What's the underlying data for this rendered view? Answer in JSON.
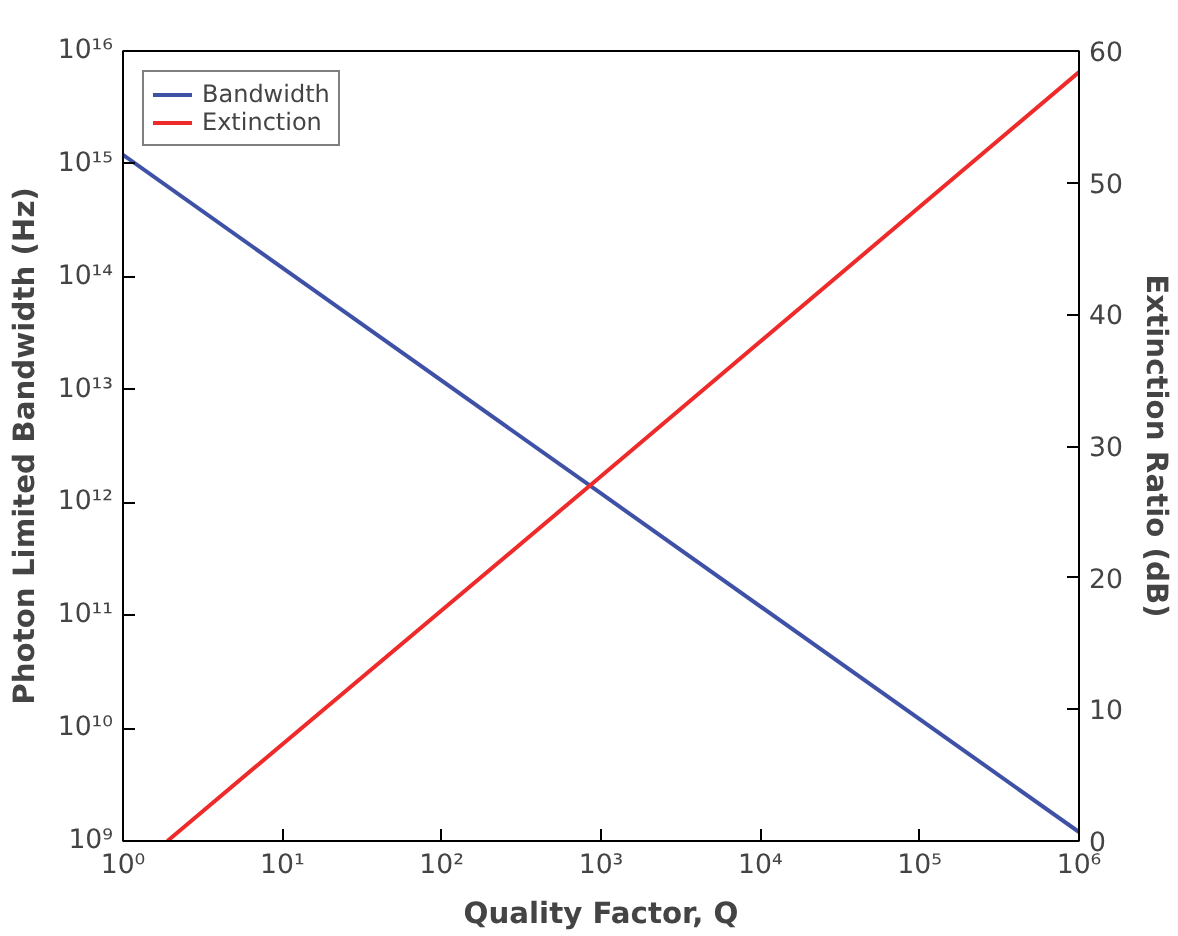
{
  "chart_data": {
    "type": "line",
    "xlabel": "Quality Factor, Q",
    "ylabel": "Photon Limited Bandwidth (Hz)",
    "y2label": "Extinction Ratio (dB)",
    "log": "xy",
    "xlim": [
      1,
      1000000
    ],
    "ylim": [
      1000000000,
      10000000000000000
    ],
    "y2lim": [
      0,
      60
    ],
    "xticks": [
      {
        "value": 1,
        "label": "10⁰"
      },
      {
        "value": 10,
        "label": "10¹"
      },
      {
        "value": 100,
        "label": "10²"
      },
      {
        "value": 1000,
        "label": "10³"
      },
      {
        "value": 10000,
        "label": "10⁴"
      },
      {
        "value": 100000,
        "label": "10⁵"
      },
      {
        "value": 1000000,
        "label": "10⁶"
      }
    ],
    "yticks": [
      {
        "value": 1000000000,
        "label": "10⁹"
      },
      {
        "value": 10000000000,
        "label": "10¹⁰"
      },
      {
        "value": 100000000000,
        "label": "10¹¹"
      },
      {
        "value": 1000000000000,
        "label": "10¹²"
      },
      {
        "value": 10000000000000,
        "label": "10¹³"
      },
      {
        "value": 100000000000000,
        "label": "10¹⁴"
      },
      {
        "value": 1000000000000000,
        "label": "10¹⁵"
      },
      {
        "value": 10000000000000000,
        "label": "10¹⁶"
      }
    ],
    "y2ticks": [
      0,
      10,
      20,
      30,
      40,
      50,
      60
    ],
    "grid": false,
    "legend": "top left",
    "series": [
      {
        "name": "Bandwidth",
        "color": "#3f51a6",
        "x": [
          1,
          1000,
          1000000
        ],
        "values": [
          1200000000000000,
          1200000000000,
          1200000000
        ]
      },
      {
        "name": "Extinction",
        "color": "#ee2a2a",
        "axis": "y2",
        "x": [
          1.9,
          1000,
          1000000
        ],
        "values": [
          0,
          27.7,
          58.4
        ]
      }
    ]
  }
}
